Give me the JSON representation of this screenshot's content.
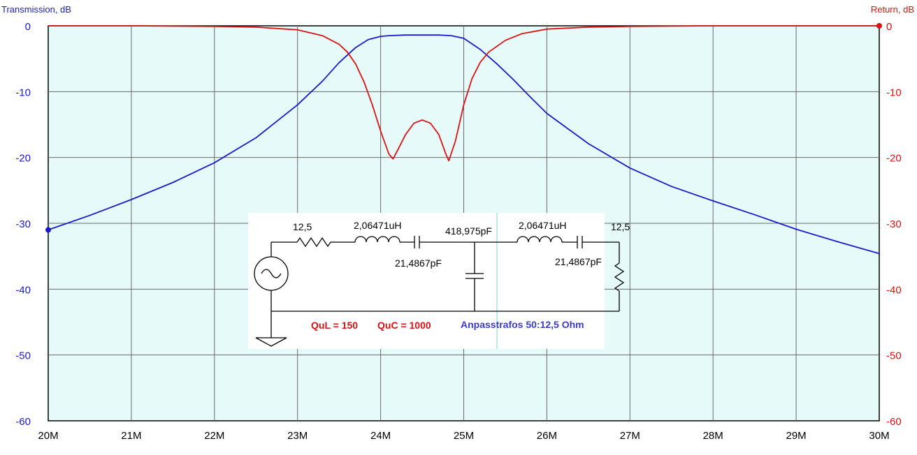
{
  "chart_data": {
    "type": "line",
    "title": "",
    "ylabel_left": "Transmission, dB",
    "ylabel_right": "Return, dB",
    "x_range": [
      20,
      30
    ],
    "x_unit_suffix": "M",
    "x_ticks": [
      "20M",
      "21M",
      "22M",
      "23M",
      "24M",
      "25M",
      "26M",
      "27M",
      "28M",
      "29M",
      "30M"
    ],
    "y_range": [
      -60,
      0
    ],
    "y_ticks_left": [
      "0",
      "-10",
      "-20",
      "-30",
      "-40",
      "-50",
      "-60"
    ],
    "y_ticks_right": [
      "0",
      "-10",
      "-20",
      "-30",
      "-40",
      "-50",
      "-60"
    ],
    "grid": true,
    "plot_background": "#e6fafa",
    "series": [
      {
        "name": "Transmission",
        "color": "#1a1acc",
        "x": [
          20.0,
          20.5,
          21.0,
          21.5,
          22.0,
          22.5,
          23.0,
          23.3,
          23.5,
          23.7,
          23.85,
          24.0,
          24.1,
          24.3,
          24.5,
          24.7,
          24.85,
          25.0,
          25.2,
          25.4,
          25.6,
          25.8,
          26.0,
          26.5,
          27.0,
          27.5,
          28.0,
          28.5,
          29.0,
          29.5,
          30.0
        ],
        "y": [
          -31.0,
          -28.8,
          -26.4,
          -23.8,
          -20.8,
          -17.0,
          -12.0,
          -8.4,
          -5.6,
          -3.3,
          -2.1,
          -1.6,
          -1.5,
          -1.4,
          -1.4,
          -1.4,
          -1.5,
          -1.9,
          -3.6,
          -5.8,
          -8.2,
          -10.8,
          -13.3,
          -17.9,
          -21.6,
          -24.4,
          -26.6,
          -28.7,
          -30.9,
          -32.8,
          -34.6
        ]
      },
      {
        "name": "Return",
        "color": "#dd1111",
        "x": [
          20.0,
          21.0,
          22.0,
          22.5,
          23.0,
          23.3,
          23.5,
          23.6,
          23.7,
          23.8,
          23.9,
          24.0,
          24.1,
          24.15,
          24.2,
          24.3,
          24.4,
          24.5,
          24.6,
          24.7,
          24.78,
          24.82,
          24.9,
          25.0,
          25.1,
          25.2,
          25.3,
          25.5,
          25.7,
          26.0,
          26.5,
          27.0,
          28.0,
          29.0,
          30.0
        ],
        "y": [
          0.0,
          0.0,
          -0.1,
          -0.2,
          -0.6,
          -1.5,
          -2.8,
          -4.0,
          -5.8,
          -8.5,
          -12.0,
          -16.0,
          -19.5,
          -20.2,
          -19.0,
          -16.5,
          -14.8,
          -14.3,
          -14.8,
          -16.5,
          -19.3,
          -20.5,
          -17.5,
          -12.0,
          -8.0,
          -5.5,
          -4.0,
          -2.2,
          -1.2,
          -0.5,
          -0.2,
          -0.1,
          0.0,
          0.0,
          0.0
        ]
      }
    ]
  },
  "circuit": {
    "components": {
      "r_source": "12,5",
      "l1": "2,06471uH",
      "c1": "21,4867pF",
      "c_shunt": "418,975pF",
      "l2": "2,06471uH",
      "c2": "21,4867pF",
      "r_load": "12,5"
    },
    "notes": {
      "qul": "QuL = 150",
      "quc": "QuC = 1000",
      "transformer": "Anpasstrafos 50:12,5 Ohm"
    },
    "note_colors": {
      "qul": "#dd1111",
      "quc": "#dd1111",
      "transformer": "#3a3acc"
    }
  }
}
